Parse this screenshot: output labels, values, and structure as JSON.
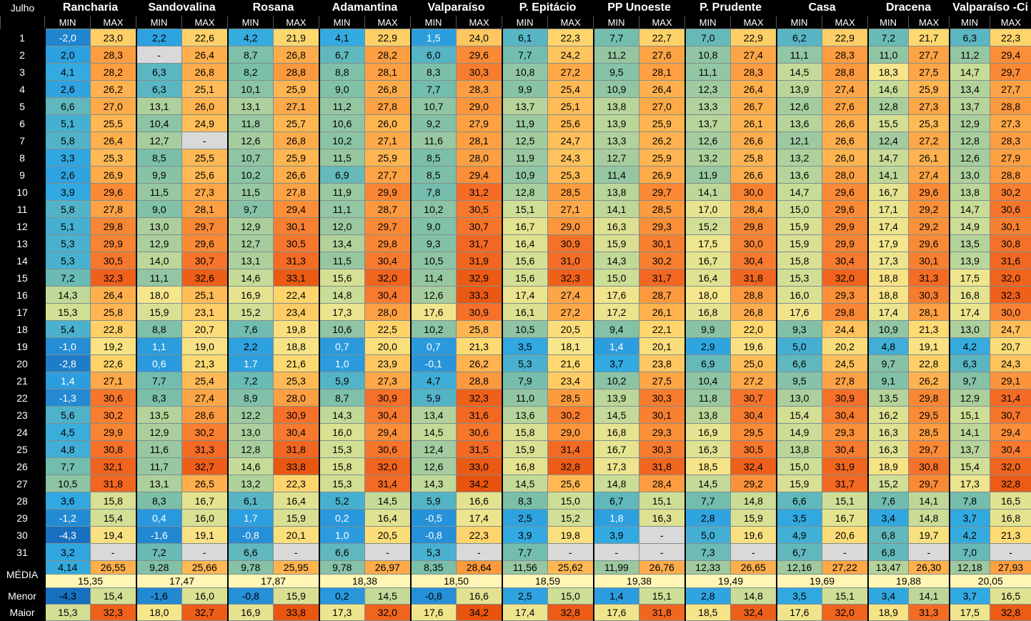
{
  "month_label": "Julho",
  "sub_min": "MIN",
  "sub_max": "MAX",
  "stations": [
    "Rancharia",
    "Sandovalina",
    "Rosana",
    "Adamantina",
    "Valparaíso",
    "P. Epitácio",
    "PP Unoeste",
    "P. Prudente",
    "Casa",
    "Dracena",
    "Valparaíso -Ci"
  ],
  "day_labels": [
    "1",
    "2",
    "3",
    "4",
    "5",
    "6",
    "7",
    "8",
    "9",
    "10",
    "11",
    "12",
    "13",
    "14",
    "15",
    "16",
    "17",
    "18",
    "19",
    "20",
    "21",
    "22",
    "23",
    "24",
    "25",
    "26",
    "27",
    "28",
    "29",
    "30",
    "31"
  ],
  "rows": [
    [
      "-2,0",
      "23,0",
      "2,2",
      "22,6",
      "4,2",
      "21,9",
      "4,1",
      "22,9",
      "1,5",
      "24,0",
      "6,1",
      "22,3",
      "7,7",
      "22,7",
      "7,0",
      "22,9",
      "6,2",
      "22,9",
      "7,2",
      "21,7",
      "6,3",
      "22,3"
    ],
    [
      "2,0",
      "28,3",
      "-",
      "26,4",
      "8,7",
      "26,8",
      "6,7",
      "28,2",
      "6,0",
      "29,6",
      "7,7",
      "24,2",
      "11,2",
      "27,6",
      "10,8",
      "27,4",
      "11,1",
      "28,3",
      "11,0",
      "27,7",
      "11,2",
      "29,4"
    ],
    [
      "4,1",
      "28,2",
      "6,3",
      "26,8",
      "8,2",
      "28,8",
      "8,8",
      "28,1",
      "8,3",
      "30,3",
      "10,8",
      "27,2",
      "9,5",
      "28,1",
      "11,1",
      "28,3",
      "14,5",
      "28,8",
      "18,3",
      "27,5",
      "14,7",
      "29,7"
    ],
    [
      "2,6",
      "26,2",
      "6,3",
      "25,1",
      "10,1",
      "25,9",
      "9,0",
      "26,8",
      "7,7",
      "28,3",
      "9,9",
      "25,4",
      "10,9",
      "26,4",
      "12,3",
      "26,4",
      "13,9",
      "27,4",
      "14,6",
      "25,9",
      "13,4",
      "27,7"
    ],
    [
      "6,6",
      "27,0",
      "13,1",
      "26,0",
      "13,1",
      "27,1",
      "11,2",
      "27,8",
      "10,7",
      "29,0",
      "13,7",
      "25,1",
      "13,8",
      "27,0",
      "13,3",
      "26,7",
      "12,6",
      "27,6",
      "12,8",
      "27,3",
      "13,7",
      "28,8"
    ],
    [
      "5,1",
      "25,5",
      "10,4",
      "24,9",
      "11,8",
      "25,7",
      "10,6",
      "26,0",
      "9,2",
      "27,9",
      "11,9",
      "25,6",
      "13,9",
      "25,9",
      "13,7",
      "26,1",
      "13,6",
      "26,6",
      "15,5",
      "25,3",
      "12,9",
      "27,3"
    ],
    [
      "5,8",
      "26,4",
      "12,7",
      "-",
      "12,6",
      "26,8",
      "10,2",
      "27,1",
      "11,6",
      "28,1",
      "12,5",
      "24,7",
      "13,3",
      "26,2",
      "12,6",
      "26,6",
      "12,1",
      "26,6",
      "12,4",
      "27,2",
      "12,8",
      "28,3"
    ],
    [
      "3,3",
      "25,3",
      "8,5",
      "25,5",
      "10,7",
      "25,9",
      "11,5",
      "25,9",
      "8,5",
      "28,0",
      "11,9",
      "24,3",
      "12,7",
      "25,9",
      "13,2",
      "25,8",
      "13,2",
      "26,0",
      "14,7",
      "26,1",
      "12,6",
      "27,9"
    ],
    [
      "2,6",
      "26,9",
      "9,9",
      "25,6",
      "10,2",
      "26,6",
      "6,9",
      "27,7",
      "8,5",
      "29,4",
      "10,9",
      "25,3",
      "11,4",
      "26,9",
      "11,9",
      "26,6",
      "13,6",
      "28,0",
      "14,1",
      "27,4",
      "13,0",
      "28,8"
    ],
    [
      "3,9",
      "29,6",
      "11,5",
      "27,3",
      "11,5",
      "27,8",
      "11,9",
      "29,9",
      "7,8",
      "31,2",
      "12,8",
      "28,5",
      "13,8",
      "29,7",
      "14,1",
      "30,0",
      "14,7",
      "29,6",
      "16,7",
      "29,6",
      "13,8",
      "30,2"
    ],
    [
      "5,8",
      "27,8",
      "9,0",
      "28,1",
      "9,7",
      "29,4",
      "11,1",
      "28,7",
      "10,2",
      "30,5",
      "15,1",
      "27,1",
      "14,1",
      "28,5",
      "17,0",
      "28,4",
      "15,0",
      "29,6",
      "17,1",
      "29,2",
      "14,7",
      "30,6"
    ],
    [
      "5,1",
      "29,8",
      "13,0",
      "29,7",
      "12,9",
      "30,1",
      "12,0",
      "29,7",
      "9,0",
      "30,7",
      "16,7",
      "29,0",
      "16,3",
      "29,3",
      "15,2",
      "29,8",
      "15,9",
      "29,9",
      "17,4",
      "29,2",
      "14,9",
      "30,1"
    ],
    [
      "5,3",
      "29,9",
      "12,9",
      "29,6",
      "12,7",
      "30,5",
      "13,4",
      "29,8",
      "9,3",
      "31,7",
      "16,4",
      "30,9",
      "15,9",
      "30,1",
      "17,5",
      "30,0",
      "15,9",
      "29,9",
      "17,9",
      "29,6",
      "13,5",
      "30,8"
    ],
    [
      "5,3",
      "30,5",
      "14,0",
      "30,7",
      "13,1",
      "31,3",
      "11,5",
      "30,4",
      "10,5",
      "31,9",
      "15,6",
      "31,0",
      "14,3",
      "30,2",
      "16,7",
      "30,4",
      "15,8",
      "30,4",
      "17,3",
      "30,1",
      "13,9",
      "31,6"
    ],
    [
      "7,2",
      "32,3",
      "11,1",
      "32,6",
      "14,6",
      "33,1",
      "15,6",
      "32,0",
      "11,4",
      "32,9",
      "15,6",
      "32,3",
      "15,0",
      "31,7",
      "16,4",
      "31,8",
      "15,3",
      "32,0",
      "18,8",
      "31,3",
      "17,5",
      "32,0"
    ],
    [
      "14,3",
      "26,4",
      "18,0",
      "25,1",
      "16,9",
      "22,4",
      "14,8",
      "30,4",
      "12,6",
      "33,3",
      "17,4",
      "27,4",
      "17,6",
      "28,7",
      "18,0",
      "28,8",
      "16,0",
      "29,3",
      "18,8",
      "30,3",
      "16,8",
      "32,3"
    ],
    [
      "15,3",
      "25,8",
      "15,9",
      "23,1",
      "15,2",
      "23,4",
      "17,3",
      "28,0",
      "17,6",
      "30,9",
      "16,1",
      "27,2",
      "17,2",
      "26,1",
      "16,8",
      "26,8",
      "17,6",
      "29,8",
      "17,4",
      "28,1",
      "17,4",
      "30,0"
    ],
    [
      "5,4",
      "22,8",
      "8,8",
      "20,7",
      "7,6",
      "19,8",
      "10,6",
      "22,5",
      "10,2",
      "25,8",
      "10,5",
      "20,5",
      "9,4",
      "22,1",
      "9,9",
      "22,0",
      "9,3",
      "24,4",
      "10,9",
      "21,3",
      "13,0",
      "24,7"
    ],
    [
      "-1,0",
      "19,2",
      "1,1",
      "19,0",
      "2,2",
      "18,8",
      "0,7",
      "20,0",
      "0,7",
      "21,3",
      "3,5",
      "18,1",
      "1,4",
      "20,1",
      "2,9",
      "19,6",
      "5,0",
      "20,2",
      "4,8",
      "19,1",
      "4,2",
      "20,7"
    ],
    [
      "-2,8",
      "22,6",
      "0,6",
      "21,3",
      "1,7",
      "21,6",
      "1,0",
      "23,9",
      "-0,1",
      "26,2",
      "5,3",
      "21,6",
      "3,7",
      "23,8",
      "6,9",
      "25,0",
      "6,6",
      "24,5",
      "9,7",
      "22,8",
      "6,3",
      "24,3"
    ],
    [
      "1,4",
      "27,1",
      "7,7",
      "25,4",
      "7,2",
      "25,3",
      "5,9",
      "27,3",
      "4,7",
      "28,8",
      "7,9",
      "23,4",
      "10,2",
      "27,5",
      "10,4",
      "27,2",
      "9,5",
      "27,8",
      "9,1",
      "26,2",
      "9,7",
      "29,1"
    ],
    [
      "-1,3",
      "30,6",
      "8,3",
      "27,4",
      "8,9",
      "28,0",
      "8,7",
      "30,9",
      "5,9",
      "32,3",
      "11,0",
      "28,5",
      "13,9",
      "30,3",
      "11,8",
      "30,7",
      "13,0",
      "30,9",
      "13,5",
      "29,8",
      "12,9",
      "31,4"
    ],
    [
      "5,6",
      "30,2",
      "13,5",
      "28,6",
      "12,2",
      "30,9",
      "14,3",
      "30,4",
      "13,4",
      "31,6",
      "13,6",
      "30,2",
      "14,5",
      "30,1",
      "13,8",
      "30,4",
      "15,4",
      "30,4",
      "16,2",
      "29,5",
      "15,1",
      "30,7"
    ],
    [
      "4,5",
      "29,9",
      "12,9",
      "30,2",
      "13,0",
      "30,4",
      "16,0",
      "29,4",
      "14,5",
      "30,6",
      "15,8",
      "29,0",
      "16,8",
      "29,3",
      "16,9",
      "29,5",
      "14,9",
      "29,3",
      "16,3",
      "28,5",
      "14,1",
      "29,4"
    ],
    [
      "4,8",
      "30,8",
      "11,6",
      "31,3",
      "12,8",
      "31,8",
      "15,3",
      "30,6",
      "12,4",
      "31,5",
      "15,9",
      "31,4",
      "16,7",
      "30,3",
      "16,3",
      "30,5",
      "13,8",
      "30,4",
      "16,3",
      "29,7",
      "13,7",
      "30,4"
    ],
    [
      "7,7",
      "32,1",
      "11,7",
      "32,7",
      "14,6",
      "33,8",
      "15,8",
      "32,0",
      "12,6",
      "33,0",
      "16,8",
      "32,8",
      "17,3",
      "31,8",
      "18,5",
      "32,4",
      "15,0",
      "31,9",
      "18,9",
      "30,8",
      "15,4",
      "32,0"
    ],
    [
      "10,5",
      "31,8",
      "13,1",
      "26,5",
      "13,2",
      "22,3",
      "15,3",
      "31,4",
      "14,3",
      "34,2",
      "14,5",
      "25,6",
      "14,8",
      "28,4",
      "14,5",
      "29,2",
      "15,9",
      "31,7",
      "15,2",
      "29,7",
      "17,3",
      "32,8"
    ],
    [
      "3,6",
      "15,8",
      "8,3",
      "16,7",
      "6,1",
      "16,4",
      "5,2",
      "14,5",
      "5,9",
      "16,6",
      "8,3",
      "15,0",
      "6,7",
      "15,1",
      "7,7",
      "14,8",
      "6,6",
      "15,1",
      "7,6",
      "14,1",
      "7,8",
      "16,5"
    ],
    [
      "-1,2",
      "15,4",
      "0,4",
      "16,0",
      "1,7",
      "15,9",
      "0,2",
      "16,4",
      "-0,5",
      "17,4",
      "2,5",
      "15,2",
      "1,8",
      "16,3",
      "2,8",
      "15,9",
      "3,5",
      "16,7",
      "3,4",
      "14,8",
      "3,7",
      "16,8"
    ],
    [
      "-4,3",
      "19,4",
      "-1,6",
      "19,1",
      "-0,8",
      "20,1",
      "1,0",
      "20,5",
      "-0,8",
      "22,3",
      "3,9",
      "19,8",
      "3,9",
      "-",
      "5,0",
      "19,6",
      "4,9",
      "20,6",
      "6,8",
      "19,7",
      "4,2",
      "21,3"
    ],
    [
      "3,2",
      "-",
      "7,2",
      "-",
      "6,6",
      "-",
      "6,6",
      "-",
      "5,3",
      "-",
      "7,7",
      "-",
      "-",
      "-",
      "7,3",
      "-",
      "6,7",
      "-",
      "6,8",
      "-",
      "7,0",
      "-"
    ]
  ],
  "media_label": "MÉDIA",
  "media": [
    "4,14",
    "26,55",
    "9,28",
    "25,66",
    "9,78",
    "25,95",
    "9,78",
    "26,97",
    "8,35",
    "28,64",
    "11,56",
    "25,62",
    "11,99",
    "26,76",
    "12,33",
    "26,65",
    "12,16",
    "27,22",
    "13,47",
    "26,30",
    "12,18",
    "27,93"
  ],
  "media_avg": [
    "15,35",
    "17,47",
    "17,87",
    "18,38",
    "18,50",
    "18,59",
    "19,38",
    "19,49",
    "19,69",
    "19,88",
    "20,05"
  ],
  "menor_label": "Menor",
  "menor": [
    "-4,3",
    "15,4",
    "-1,6",
    "16,0",
    "-0,8",
    "15,9",
    "0,2",
    "14,5",
    "-0,8",
    "16,6",
    "2,5",
    "15,0",
    "1,4",
    "15,1",
    "2,8",
    "14,8",
    "3,5",
    "15,1",
    "3,4",
    "14,1",
    "3,7",
    "16,5"
  ],
  "maior_label": "Maior",
  "maior": [
    "15,3",
    "32,3",
    "18,0",
    "32,7",
    "16,9",
    "33,8",
    "17,3",
    "32,0",
    "17,6",
    "34,2",
    "17,4",
    "32,8",
    "17,6",
    "31,8",
    "18,5",
    "32,4",
    "17,6",
    "32,0",
    "18,9",
    "31,3",
    "17,5",
    "32,8"
  ],
  "colors": {
    "empty": "#d9d9d9",
    "avg_band": "#fff5b5"
  }
}
